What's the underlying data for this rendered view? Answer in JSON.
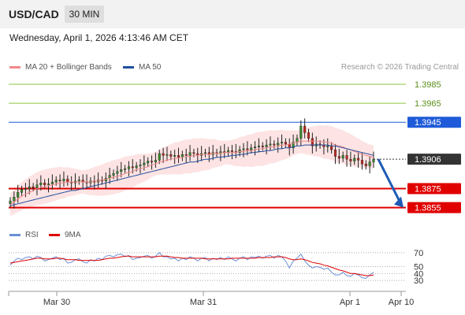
{
  "header": {
    "symbol": "USD/CAD",
    "timeframe": "30 MIN"
  },
  "datetime": "Wednesday, April 1, 2026 4:13:46 AM CET",
  "legend": {
    "ma20_label": "MA 20 + Bollinger Bands",
    "ma50_label": "MA 50",
    "ma20_color": "#f08a8a",
    "ma50_color": "#1f4e9e",
    "copyright": "Research © 2026 Trading Central"
  },
  "rsi_legend": {
    "rsi_label": "RSI",
    "ma9_label": "9MA",
    "rsi_color": "#6b8fd6",
    "ma9_color": "#e00000"
  },
  "price_levels": [
    {
      "value": "1.3985",
      "color": "#8cc63f",
      "style": "green"
    },
    {
      "value": "1.3965",
      "color": "#8cc63f",
      "style": "green"
    },
    {
      "value": "1.3945",
      "color": "#1f5bd8",
      "style": "blue"
    },
    {
      "value": "1.3906",
      "color": "#333333",
      "style": "current"
    },
    {
      "value": "1.3875",
      "color": "#e00000",
      "style": "red"
    },
    {
      "value": "1.3855",
      "color": "#e00000",
      "style": "red"
    }
  ],
  "rsi_axis": [
    "70",
    "50",
    "40",
    "30"
  ],
  "x_axis": [
    "Mar 30",
    "Mar 31",
    "Apr 1",
    "Apr 10"
  ],
  "chart_data": {
    "type": "candlestick",
    "instrument": "USD/CAD",
    "interval": "30 MIN",
    "y_range": [
      1.3848,
      1.3995
    ],
    "closes": [
      1.3862,
      1.3866,
      1.3871,
      1.3874,
      1.3875,
      1.3877,
      1.3876,
      1.3879,
      1.3881,
      1.3879,
      1.388,
      1.3882,
      1.3884,
      1.3883,
      1.3885,
      1.3882,
      1.3881,
      1.3883,
      1.3884,
      1.3882,
      1.3881,
      1.3883,
      1.3882,
      1.3884,
      1.3883,
      1.3886,
      1.3889,
      1.3891,
      1.3893,
      1.3895,
      1.3896,
      1.3898,
      1.3897,
      1.3899,
      1.39,
      1.3902,
      1.3904,
      1.3903,
      1.3905,
      1.3912,
      1.391,
      1.3911,
      1.3909,
      1.391,
      1.3908,
      1.3911,
      1.391,
      1.3913,
      1.3912,
      1.391,
      1.3912,
      1.3913,
      1.3911,
      1.3913,
      1.3912,
      1.3914,
      1.3913,
      1.3915,
      1.3914,
      1.3913,
      1.3916,
      1.3917,
      1.3916,
      1.3918,
      1.3919,
      1.392,
      1.3919,
      1.3921,
      1.3922,
      1.3921,
      1.3923,
      1.3924,
      1.3922,
      1.3918,
      1.3924,
      1.3928,
      1.3941,
      1.3934,
      1.3928,
      1.392,
      1.3922,
      1.3921,
      1.3919,
      1.392,
      1.3916,
      1.3909,
      1.3907,
      1.391,
      1.3906,
      1.3904,
      1.3907,
      1.3905,
      1.3901,
      1.3899,
      1.3903,
      1.3906
    ],
    "ma20": [
      1.3858,
      1.3861,
      1.3864,
      1.3867,
      1.3869,
      1.3871,
      1.3873,
      1.3875,
      1.3876,
      1.3877,
      1.3878,
      1.3879,
      1.388,
      1.3881,
      1.3881,
      1.3882,
      1.3882,
      1.3882,
      1.3882,
      1.3882,
      1.3882,
      1.3882,
      1.3883,
      1.3883,
      1.3884,
      1.3885,
      1.3886,
      1.3887,
      1.3888,
      1.3889,
      1.3891,
      1.3892,
      1.3893,
      1.3895,
      1.3896,
      1.3897,
      1.3898,
      1.39,
      1.3901,
      1.3903,
      1.3904,
      1.3905,
      1.3906,
      1.3907,
      1.3907,
      1.3908,
      1.3909,
      1.3909,
      1.391,
      1.391,
      1.3911,
      1.3911,
      1.3911,
      1.3912,
      1.3912,
      1.3912,
      1.3913,
      1.3913,
      1.3913,
      1.3913,
      1.3914,
      1.3914,
      1.3915,
      1.3915,
      1.3916,
      1.3917,
      1.3917,
      1.3918,
      1.3919,
      1.3919,
      1.392,
      1.3921,
      1.3921,
      1.3922,
      1.3923,
      1.3924,
      1.3925,
      1.3925,
      1.3925,
      1.3925,
      1.3925,
      1.3925,
      1.3924,
      1.3924,
      1.3923,
      1.3921,
      1.392,
      1.3919,
      1.3917,
      1.3916,
      1.3914,
      1.3913,
      1.3911,
      1.391,
      1.3909,
      1.3908
    ],
    "ma50": [
      1.3857,
      1.3858,
      1.3859,
      1.386,
      1.3861,
      1.3862,
      1.3863,
      1.3864,
      1.3865,
      1.3866,
      1.3867,
      1.3868,
      1.3869,
      1.387,
      1.3871,
      1.3872,
      1.3873,
      1.3873,
      1.3874,
      1.3875,
      1.3876,
      1.3877,
      1.3878,
      1.3879,
      1.388,
      1.3881,
      1.3882,
      1.3883,
      1.3884,
      1.3885,
      1.3886,
      1.3887,
      1.3888,
      1.3889,
      1.389,
      1.3891,
      1.3892,
      1.3893,
      1.3894,
      1.3895,
      1.3896,
      1.3897,
      1.3898,
      1.3899,
      1.39,
      1.3901,
      1.3902,
      1.3903,
      1.3903,
      1.3904,
      1.3905,
      1.3906,
      1.3906,
      1.3907,
      1.3908,
      1.3908,
      1.3909,
      1.3909,
      1.391,
      1.391,
      1.3911,
      1.3911,
      1.3912,
      1.3913,
      1.3913,
      1.3914,
      1.3914,
      1.3915,
      1.3915,
      1.3916,
      1.3917,
      1.3917,
      1.3918,
      1.3918,
      1.3919,
      1.392,
      1.392,
      1.3921,
      1.3921,
      1.3921,
      1.3921,
      1.3921,
      1.3921,
      1.3921,
      1.392,
      1.392,
      1.3919,
      1.3918,
      1.3917,
      1.3916,
      1.3915,
      1.3914,
      1.3913,
      1.3912,
      1.3911,
      1.391
    ],
    "rsi": [
      52,
      58,
      62,
      60,
      63,
      64,
      61,
      65,
      63,
      58,
      60,
      62,
      64,
      60,
      62,
      55,
      56,
      60,
      61,
      57,
      55,
      60,
      58,
      62,
      60,
      65,
      66,
      64,
      67,
      68,
      64,
      66,
      60,
      62,
      63,
      65,
      66,
      62,
      65,
      70,
      64,
      64,
      61,
      62,
      58,
      62,
      60,
      64,
      62,
      58,
      62,
      63,
      58,
      62,
      60,
      63,
      60,
      64,
      61,
      58,
      62,
      64,
      60,
      64,
      63,
      65,
      62,
      65,
      66,
      62,
      66,
      64,
      58,
      48,
      58,
      62,
      68,
      58,
      52,
      48,
      50,
      49,
      46,
      48,
      42,
      38,
      38,
      42,
      37,
      36,
      40,
      38,
      34,
      33,
      38,
      42
    ],
    "rsi_ma9": [
      55,
      56,
      57,
      58,
      59,
      60,
      61,
      62,
      62,
      61,
      61,
      61,
      62,
      62,
      61,
      60,
      60,
      60,
      59,
      59,
      59,
      59,
      59,
      59,
      60,
      61,
      62,
      62,
      63,
      64,
      65,
      65,
      64,
      64,
      64,
      64,
      64,
      64,
      64,
      65,
      65,
      65,
      64,
      63,
      63,
      62,
      62,
      62,
      62,
      62,
      62,
      61,
      61,
      61,
      61,
      61,
      61,
      61,
      62,
      62,
      62,
      62,
      62,
      62,
      62,
      63,
      63,
      63,
      63,
      64,
      64,
      64,
      63,
      61,
      60,
      60,
      61,
      60,
      58,
      56,
      55,
      54,
      52,
      51,
      49,
      47,
      45,
      44,
      42,
      40,
      40,
      39,
      38,
      37,
      37,
      38
    ],
    "resistance": [
      1.3985,
      1.3965,
      1.3945
    ],
    "support": [
      1.3875,
      1.3855
    ],
    "last_price": 1.3906,
    "forecast_target": 1.3855,
    "rsi_levels": [
      70,
      50,
      40,
      30
    ]
  }
}
